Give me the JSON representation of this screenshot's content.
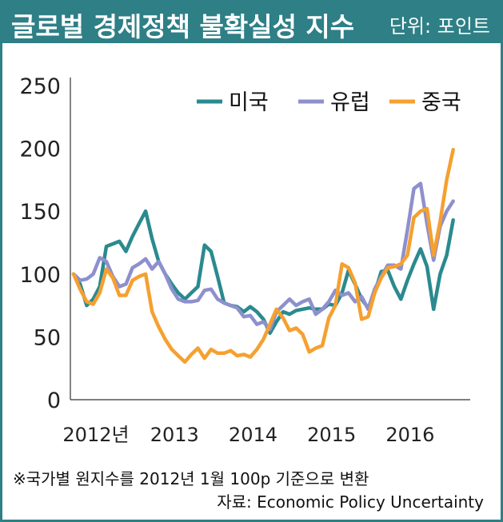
{
  "header": {
    "title": "글로벌 경제정책 불확실성 지수",
    "unit": "단위: 포인트"
  },
  "notes": {
    "line1": "※국가별 원지수를 2012년 1월 100p 기준으로 변환",
    "line2": "자료: Economic Policy Uncertainty"
  },
  "colors": {
    "header_bg": "#2e7f86",
    "us": "#2a8a8f",
    "europe": "#8e90cd",
    "china": "#f5a030"
  },
  "chart_data": {
    "type": "line",
    "title": "글로벌 경제정책 불확실성 지수",
    "unit": "단위: 포인트",
    "ylim": [
      0,
      250
    ],
    "yticks": [
      0,
      50,
      100,
      150,
      200,
      250
    ],
    "xlim": [
      2012.0,
      2016.917
    ],
    "xticks": [
      {
        "value": 2012.0,
        "label": "2012년"
      },
      {
        "value": 2013.0,
        "label": "2013"
      },
      {
        "value": 2014.0,
        "label": "2014"
      },
      {
        "value": 2015.0,
        "label": "2015"
      },
      {
        "value": 2016.0,
        "label": "2016"
      }
    ],
    "grid": false,
    "legend": "top-right",
    "series": [
      {
        "name": "미국",
        "color": "#2a8a8f",
        "points": [
          [
            2012.0,
            100
          ],
          [
            2012.083,
            92
          ],
          [
            2012.167,
            75
          ],
          [
            2012.25,
            80
          ],
          [
            2012.333,
            90
          ],
          [
            2012.417,
            122
          ],
          [
            2012.5,
            124
          ],
          [
            2012.583,
            126
          ],
          [
            2012.667,
            118
          ],
          [
            2012.75,
            130
          ],
          [
            2012.833,
            140
          ],
          [
            2012.917,
            150
          ],
          [
            2013.0,
            128
          ],
          [
            2013.083,
            110
          ],
          [
            2013.167,
            100
          ],
          [
            2013.25,
            92
          ],
          [
            2013.333,
            85
          ],
          [
            2013.417,
            80
          ],
          [
            2013.5,
            85
          ],
          [
            2013.583,
            90
          ],
          [
            2013.667,
            123
          ],
          [
            2013.75,
            118
          ],
          [
            2013.833,
            98
          ],
          [
            2013.917,
            77
          ],
          [
            2014.0,
            75
          ],
          [
            2014.083,
            74
          ],
          [
            2014.167,
            70
          ],
          [
            2014.25,
            74
          ],
          [
            2014.333,
            70
          ],
          [
            2014.417,
            64
          ],
          [
            2014.5,
            53
          ],
          [
            2014.583,
            62
          ],
          [
            2014.667,
            70
          ],
          [
            2014.75,
            68
          ],
          [
            2014.833,
            71
          ],
          [
            2014.917,
            72
          ],
          [
            2015.0,
            73
          ],
          [
            2015.083,
            72
          ],
          [
            2015.167,
            72
          ],
          [
            2015.25,
            76
          ],
          [
            2015.333,
            75
          ],
          [
            2015.417,
            85
          ],
          [
            2015.5,
            103
          ],
          [
            2015.583,
            92
          ],
          [
            2015.667,
            80
          ],
          [
            2015.75,
            73
          ],
          [
            2015.833,
            85
          ],
          [
            2015.917,
            102
          ],
          [
            2016.0,
            103
          ],
          [
            2016.083,
            90
          ],
          [
            2016.167,
            80
          ],
          [
            2016.25,
            95
          ],
          [
            2016.333,
            108
          ],
          [
            2016.417,
            120
          ],
          [
            2016.5,
            106
          ],
          [
            2016.583,
            72
          ],
          [
            2016.667,
            100
          ],
          [
            2016.75,
            115
          ],
          [
            2016.833,
            143
          ]
        ]
      },
      {
        "name": "유럽",
        "color": "#8e90cd",
        "points": [
          [
            2012.0,
            100
          ],
          [
            2012.083,
            95
          ],
          [
            2012.167,
            96
          ],
          [
            2012.25,
            100
          ],
          [
            2012.333,
            113
          ],
          [
            2012.417,
            110
          ],
          [
            2012.5,
            98
          ],
          [
            2012.583,
            90
          ],
          [
            2012.667,
            92
          ],
          [
            2012.75,
            105
          ],
          [
            2012.833,
            108
          ],
          [
            2012.917,
            112
          ],
          [
            2013.0,
            104
          ],
          [
            2013.083,
            110
          ],
          [
            2013.167,
            100
          ],
          [
            2013.25,
            88
          ],
          [
            2013.333,
            80
          ],
          [
            2013.417,
            78
          ],
          [
            2013.5,
            78
          ],
          [
            2013.583,
            79
          ],
          [
            2013.667,
            87
          ],
          [
            2013.75,
            88
          ],
          [
            2013.833,
            80
          ],
          [
            2013.917,
            77
          ],
          [
            2014.0,
            75
          ],
          [
            2014.083,
            73
          ],
          [
            2014.167,
            66
          ],
          [
            2014.25,
            67
          ],
          [
            2014.333,
            60
          ],
          [
            2014.417,
            62
          ],
          [
            2014.5,
            56
          ],
          [
            2014.583,
            70
          ],
          [
            2014.667,
            75
          ],
          [
            2014.75,
            80
          ],
          [
            2014.833,
            75
          ],
          [
            2014.917,
            78
          ],
          [
            2015.0,
            80
          ],
          [
            2015.083,
            68
          ],
          [
            2015.167,
            72
          ],
          [
            2015.25,
            78
          ],
          [
            2015.333,
            87
          ],
          [
            2015.417,
            83
          ],
          [
            2015.5,
            85
          ],
          [
            2015.583,
            78
          ],
          [
            2015.667,
            82
          ],
          [
            2015.75,
            72
          ],
          [
            2015.833,
            88
          ],
          [
            2015.917,
            98
          ],
          [
            2016.0,
            107
          ],
          [
            2016.083,
            107
          ],
          [
            2016.167,
            104
          ],
          [
            2016.25,
            135
          ],
          [
            2016.333,
            168
          ],
          [
            2016.417,
            172
          ],
          [
            2016.5,
            140
          ],
          [
            2016.583,
            111
          ],
          [
            2016.667,
            138
          ],
          [
            2016.75,
            150
          ],
          [
            2016.833,
            158
          ]
        ]
      },
      {
        "name": "중국",
        "color": "#f5a030",
        "points": [
          [
            2012.0,
            100
          ],
          [
            2012.083,
            88
          ],
          [
            2012.167,
            78
          ],
          [
            2012.25,
            76
          ],
          [
            2012.333,
            85
          ],
          [
            2012.417,
            104
          ],
          [
            2012.5,
            97
          ],
          [
            2012.583,
            83
          ],
          [
            2012.667,
            83
          ],
          [
            2012.75,
            95
          ],
          [
            2012.833,
            98
          ],
          [
            2012.917,
            100
          ],
          [
            2013.0,
            70
          ],
          [
            2013.083,
            58
          ],
          [
            2013.167,
            48
          ],
          [
            2013.25,
            40
          ],
          [
            2013.333,
            35
          ],
          [
            2013.417,
            30
          ],
          [
            2013.5,
            36
          ],
          [
            2013.583,
            41
          ],
          [
            2013.667,
            33
          ],
          [
            2013.75,
            40
          ],
          [
            2013.833,
            37
          ],
          [
            2013.917,
            37
          ],
          [
            2014.0,
            39
          ],
          [
            2014.083,
            35
          ],
          [
            2014.167,
            36
          ],
          [
            2014.25,
            34
          ],
          [
            2014.333,
            40
          ],
          [
            2014.417,
            48
          ],
          [
            2014.5,
            60
          ],
          [
            2014.583,
            72
          ],
          [
            2014.667,
            65
          ],
          [
            2014.75,
            55
          ],
          [
            2014.833,
            57
          ],
          [
            2014.917,
            52
          ],
          [
            2015.0,
            38
          ],
          [
            2015.083,
            41
          ],
          [
            2015.167,
            43
          ],
          [
            2015.25,
            65
          ],
          [
            2015.333,
            75
          ],
          [
            2015.417,
            108
          ],
          [
            2015.5,
            105
          ],
          [
            2015.583,
            93
          ],
          [
            2015.667,
            64
          ],
          [
            2015.75,
            66
          ],
          [
            2015.833,
            85
          ],
          [
            2015.917,
            97
          ],
          [
            2016.0,
            105
          ],
          [
            2016.083,
            106
          ],
          [
            2016.167,
            108
          ],
          [
            2016.25,
            115
          ],
          [
            2016.333,
            145
          ],
          [
            2016.417,
            150
          ],
          [
            2016.5,
            152
          ],
          [
            2016.583,
            115
          ],
          [
            2016.667,
            142
          ],
          [
            2016.75,
            175
          ],
          [
            2016.833,
            199
          ]
        ]
      }
    ]
  }
}
